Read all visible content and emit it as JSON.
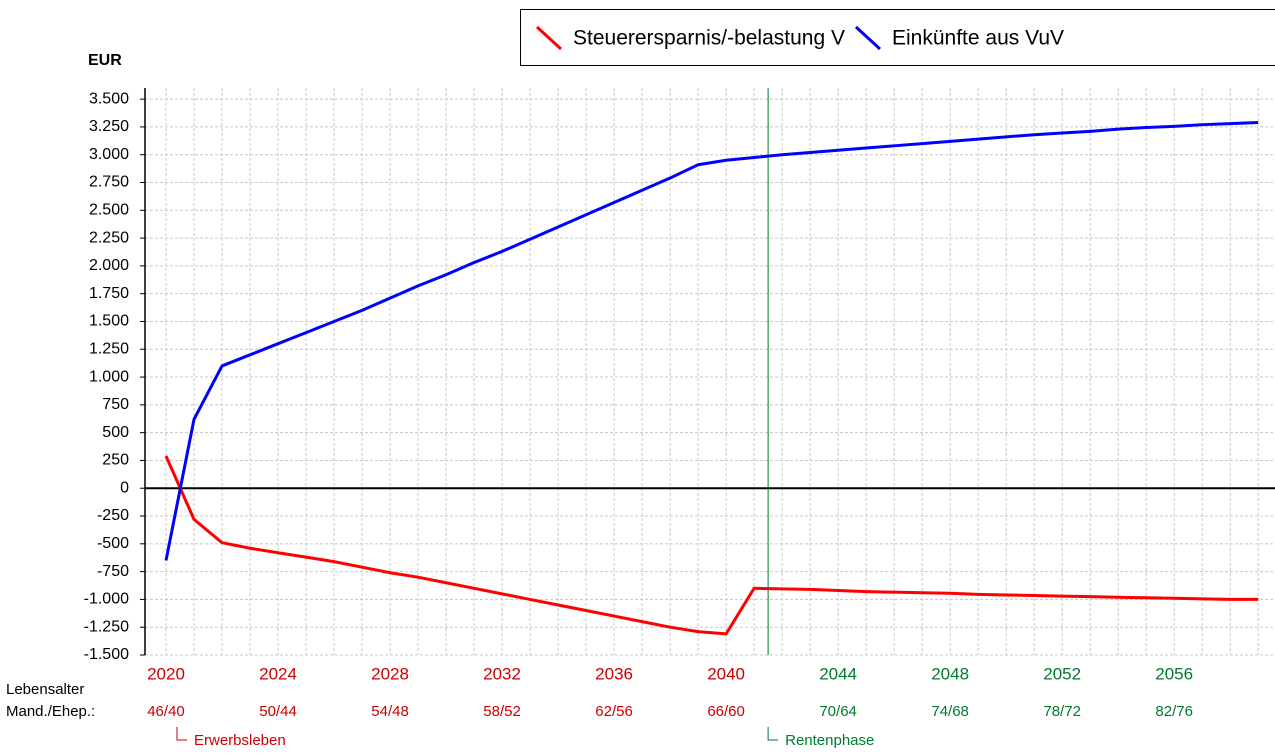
{
  "chart_data": {
    "type": "line",
    "y_unit_label": "EUR",
    "x": [
      2020,
      2021,
      2022,
      2023,
      2024,
      2025,
      2026,
      2027,
      2028,
      2029,
      2030,
      2031,
      2032,
      2033,
      2034,
      2035,
      2036,
      2037,
      2038,
      2039,
      2040,
      2041,
      2042,
      2043,
      2044,
      2045,
      2046,
      2047,
      2048,
      2049,
      2050,
      2051,
      2052,
      2053,
      2054,
      2055,
      2056,
      2057,
      2058,
      2059
    ],
    "series": [
      {
        "name": "Steuerersparnis/-belastung V",
        "color": "#ff0000",
        "values": [
          290,
          -280,
          -490,
          -540,
          -580,
          -620,
          -660,
          -710,
          -760,
          -800,
          -850,
          -900,
          -950,
          -1000,
          -1050,
          -1100,
          -1150,
          -1200,
          -1250,
          -1290,
          -1310,
          -900,
          -905,
          -910,
          -920,
          -930,
          -935,
          -940,
          -945,
          -955,
          -960,
          -965,
          -970,
          -975,
          -980,
          -985,
          -990,
          -995,
          -1000,
          -1000
        ]
      },
      {
        "name": "Einkünfte aus VuV",
        "color": "#0000ff",
        "values": [
          -650,
          620,
          1100,
          1200,
          1300,
          1400,
          1500,
          1600,
          1710,
          1820,
          1920,
          2030,
          2130,
          2240,
          2350,
          2460,
          2570,
          2680,
          2790,
          2910,
          2950,
          2975,
          3000,
          3020,
          3040,
          3060,
          3080,
          3100,
          3120,
          3140,
          3160,
          3180,
          3195,
          3210,
          3230,
          3245,
          3255,
          3270,
          3280,
          3290
        ]
      }
    ],
    "xlim": [
      2019.25,
      2059.6
    ],
    "ylim": [
      -1500,
      3600
    ],
    "xticks": [
      2020,
      2024,
      2028,
      2032,
      2036,
      2040,
      2044,
      2048,
      2052,
      2056
    ],
    "age_labels": [
      "46/40",
      "50/44",
      "54/48",
      "58/52",
      "62/56",
      "66/60",
      "70/64",
      "74/68",
      "78/72",
      "82/76"
    ],
    "age_row_labels": [
      "Lebensalter",
      "Mand./Ehep.:"
    ],
    "yticks": [
      {
        "value": 3500,
        "label": "3.500"
      },
      {
        "value": 3250,
        "label": "3.250"
      },
      {
        "value": 3000,
        "label": "3.000"
      },
      {
        "value": 2750,
        "label": "2.750"
      },
      {
        "value": 2500,
        "label": "2.500"
      },
      {
        "value": 2250,
        "label": "2.250"
      },
      {
        "value": 2000,
        "label": "2.000"
      },
      {
        "value": 1750,
        "label": "1.750"
      },
      {
        "value": 1500,
        "label": "1.500"
      },
      {
        "value": 1250,
        "label": "1.250"
      },
      {
        "value": 1000,
        "label": "1.000"
      },
      750,
      500,
      250,
      0,
      -250,
      -500,
      -750,
      {
        "value": -1000,
        "label": "-1.000"
      },
      {
        "value": -1250,
        "label": "-1.250"
      },
      {
        "value": -1500,
        "label": "-1.500"
      }
    ],
    "grid": true,
    "phase_change": 2041.5,
    "phases": [
      {
        "name": "Erwerbsleben",
        "color": "#cc0000"
      },
      {
        "name": "Rentenphase",
        "color": "#007a2e"
      }
    ],
    "legend": "top-right"
  }
}
